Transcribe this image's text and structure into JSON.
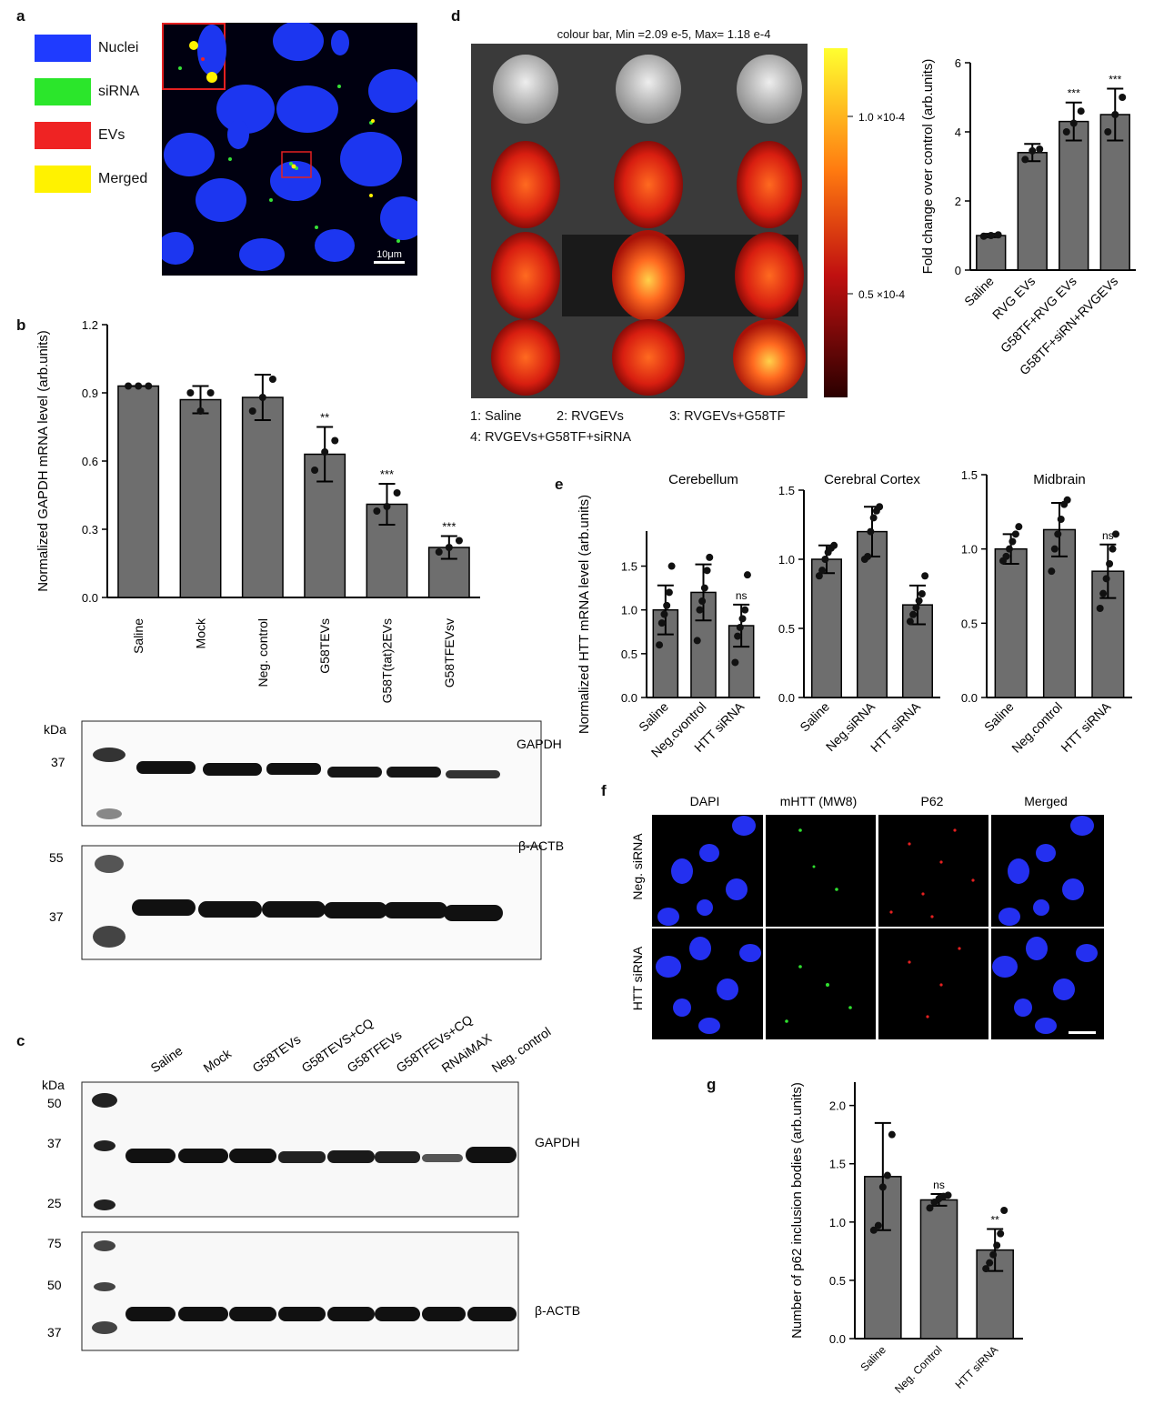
{
  "panel_letters": {
    "a": "a",
    "b": "b",
    "c": "c",
    "d": "d",
    "e": "e",
    "f": "f",
    "g": "g"
  },
  "colors": {
    "bar": "#6e6e6e",
    "nuclei": "#1f3bff",
    "sirna": "#2be62b",
    "evs": "#ef2323",
    "merged": "#fff200"
  },
  "panel_a": {
    "legend": [
      {
        "label": "Nuclei",
        "color": "#1f3bff"
      },
      {
        "label": "siRNA",
        "color": "#2be62b"
      },
      {
        "label": "EVs",
        "color": "#ef2323"
      },
      {
        "label": "Merged",
        "color": "#fff200"
      }
    ],
    "scale_bar": "10μm"
  },
  "panel_c": {
    "lanes": [
      "Saline",
      "Mock",
      "G58TEVs",
      "G58TEVS+CQ",
      "G58TFEVs",
      "G58TFEVs+CQ",
      "RNAiMAX",
      "Neg. control"
    ],
    "kda": "kDa",
    "gapdh_blot": {
      "label": "GAPDH",
      "markers": [
        "50",
        "37",
        "25"
      ]
    },
    "actb_blot": {
      "label": "β-ACTB",
      "markers": [
        "75",
        "50",
        "37"
      ]
    }
  },
  "panel_b_blot": {
    "kda": "kDa",
    "gapdh": {
      "label": "GAPDH",
      "markers": [
        "37"
      ]
    },
    "actb": {
      "label": "β-ACTB",
      "markers": [
        "55",
        "37"
      ]
    }
  },
  "panel_d": {
    "colour_bar_title": "colour bar, Min =2.09 e-5, Max= 1.18 e-4",
    "colour_ticks": [
      "1.0 ×10-4",
      "0.5 ×10-4"
    ],
    "legend_lines": [
      "1: Saline",
      "2: RVGEVs",
      "3: RVGEVs+G58TF",
      "4: RVGEVs+G58TF+siRNA"
    ]
  },
  "panel_f": {
    "columns": [
      "DAPI",
      "mHTT (MW8)",
      "P62",
      "Merged"
    ],
    "rows": [
      "Neg. siRNA",
      "HTT siRNA"
    ]
  },
  "chart_data": [
    {
      "id": "b",
      "type": "bar",
      "categories": [
        "Saline",
        "Mock",
        "Neg. control",
        "G58TEVs",
        "G58T(tat)2EVs",
        "G58TFEVsv"
      ],
      "values": [
        0.93,
        0.87,
        0.88,
        0.63,
        0.41,
        0.22
      ],
      "errors": [
        0.0,
        0.06,
        0.1,
        0.12,
        0.09,
        0.05
      ],
      "points": [
        [
          0.93,
          0.93,
          0.93
        ],
        [
          0.9,
          0.82,
          0.9
        ],
        [
          0.82,
          0.88,
          0.96
        ],
        [
          0.56,
          0.64,
          0.69
        ],
        [
          0.38,
          0.4,
          0.46
        ],
        [
          0.2,
          0.22,
          0.25
        ]
      ],
      "significance": [
        "",
        "",
        "",
        "**",
        "***",
        "***"
      ],
      "ylabel": "Normalized GAPDH mRNA level (arb.units)",
      "yticks": [
        1.2,
        0.9,
        0.6,
        0.3,
        0.0
      ],
      "ytick_labels": [
        "1.2",
        "0.9",
        "0.6",
        "0.3",
        "0.0"
      ]
    },
    {
      "id": "d",
      "type": "bar",
      "categories": [
        "Saline",
        "RVG EVs",
        "G58TF+RVG EVs",
        "G58TF+siRN+RVGEVs"
      ],
      "values": [
        1.0,
        3.4,
        4.3,
        4.5
      ],
      "errors": [
        0.05,
        0.25,
        0.55,
        0.75
      ],
      "points": [
        [
          0.98,
          1.0,
          1.02
        ],
        [
          3.2,
          3.45,
          3.5
        ],
        [
          4.0,
          4.25,
          4.6
        ],
        [
          4.0,
          4.5,
          5.0
        ]
      ],
      "significance": [
        "",
        "",
        "***",
        "***"
      ],
      "ylabel": "Fold change over control (arb.units)",
      "yticks": [
        0,
        2,
        4,
        6
      ],
      "ytick_labels": [
        "0",
        "2",
        "4",
        "6"
      ],
      "ylim": [
        0,
        6
      ]
    },
    {
      "id": "e1",
      "type": "bar",
      "title": "Cerebellum",
      "categories": [
        "Saline",
        "Neg.cvontrol",
        "HTT siRNA"
      ],
      "values": [
        1.0,
        1.2,
        0.82
      ],
      "errors": [
        0.28,
        0.32,
        0.24
      ],
      "points": [
        [
          0.6,
          0.85,
          0.95,
          1.05,
          1.2,
          1.5
        ],
        [
          0.65,
          1.0,
          1.1,
          1.25,
          1.45,
          1.6
        ],
        [
          0.4,
          0.7,
          0.8,
          0.9,
          1.0,
          1.4
        ]
      ],
      "significance": [
        "",
        "",
        "ns"
      ],
      "ylabel": "Normalized HTT mRNA level (arb.units)",
      "yticks": [
        0.0,
        0.5,
        1.0,
        1.5
      ],
      "ytick_labels": [
        "0.0",
        "0.5",
        "1.0",
        "1.5"
      ],
      "ylim": [
        0,
        1.9
      ]
    },
    {
      "id": "e2",
      "type": "bar",
      "title": "Cerebral Cortex",
      "categories": [
        "Saline",
        "Neg.siRNA",
        "HTT siRNA"
      ],
      "values": [
        1.0,
        1.2,
        0.67
      ],
      "errors": [
        0.1,
        0.18,
        0.14
      ],
      "points": [
        [
          0.88,
          0.92,
          1.0,
          1.05,
          1.08,
          1.1
        ],
        [
          1.0,
          1.02,
          1.2,
          1.3,
          1.35,
          1.38
        ],
        [
          0.55,
          0.6,
          0.65,
          0.7,
          0.75,
          0.88
        ]
      ],
      "significance": [
        "",
        "",
        ""
      ],
      "yticks": [
        0.0,
        0.5,
        1.0,
        1.5
      ],
      "ytick_labels": [
        "0.0",
        "0.5",
        "1.0",
        "1.5"
      ],
      "ylim": [
        0,
        1.5
      ]
    },
    {
      "id": "e3",
      "type": "bar",
      "title": "Midbrain",
      "categories": [
        "Saline",
        "Neg.control",
        "HTT siRNA"
      ],
      "values": [
        1.0,
        1.13,
        0.85
      ],
      "errors": [
        0.1,
        0.18,
        0.18
      ],
      "points": [
        [
          0.92,
          0.95,
          1.0,
          1.05,
          1.1,
          1.15
        ],
        [
          0.85,
          1.0,
          1.1,
          1.2,
          1.3,
          1.33
        ],
        [
          0.6,
          0.7,
          0.8,
          0.9,
          1.0,
          1.1
        ]
      ],
      "significance": [
        "",
        "",
        "ns"
      ],
      "yticks": [
        0.0,
        0.5,
        1.0,
        1.5
      ],
      "ytick_labels": [
        "0.0",
        "0.5",
        "1.0",
        "1.5"
      ],
      "ylim": [
        0,
        1.5
      ]
    },
    {
      "id": "g",
      "type": "bar",
      "categories": [
        "Saline",
        "Neg. Control",
        "HTT siRNA"
      ],
      "values": [
        1.39,
        1.19,
        0.76
      ],
      "errors": [
        0.46,
        0.05,
        0.18
      ],
      "points": [
        [
          0.93,
          0.97,
          1.3,
          1.4,
          1.75
        ],
        [
          1.12,
          1.17,
          1.2,
          1.22,
          1.23
        ],
        [
          0.6,
          0.65,
          0.72,
          0.8,
          0.9,
          1.1
        ]
      ],
      "significance": [
        "",
        "ns",
        "**"
      ],
      "ylabel": "Number of p62 inclusion bodies (arb.units)",
      "yticks": [
        0.0,
        0.5,
        1.0,
        1.5,
        2.0
      ],
      "ytick_labels": [
        "0.0",
        "0.5",
        "1.0",
        "1.5",
        "2.0"
      ],
      "ylim": [
        0,
        2.2
      ]
    }
  ]
}
